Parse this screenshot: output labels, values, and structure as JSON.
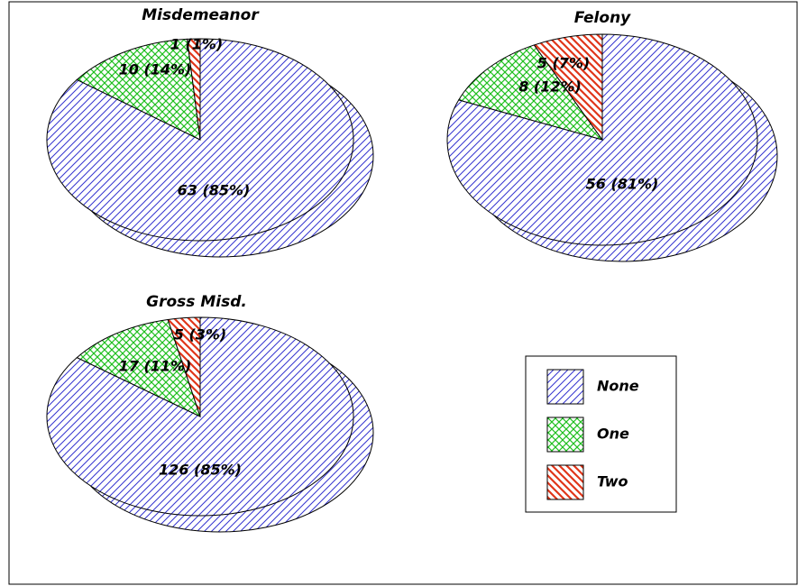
{
  "chart_data": [
    {
      "type": "pie",
      "title": "Misdemeanor",
      "categories": [
        "None",
        "One",
        "Two"
      ],
      "values": [
        63,
        10,
        1
      ],
      "value_labels": [
        "63 (85%)",
        "10 (14%)",
        "1 (1%)"
      ],
      "colors": [
        "#3434d0",
        "#1fbf1f",
        "#e0361a"
      ]
    },
    {
      "type": "pie",
      "title": "Felony",
      "categories": [
        "None",
        "One",
        "Two"
      ],
      "values": [
        56,
        8,
        5
      ],
      "value_labels": [
        "56 (81%)",
        "8 (12%)",
        "5 (7%)"
      ],
      "colors": [
        "#3434d0",
        "#1fbf1f",
        "#e0361a"
      ]
    },
    {
      "type": "pie",
      "title": "Gross Misd.",
      "categories": [
        "None",
        "One",
        "Two"
      ],
      "values": [
        126,
        17,
        5
      ],
      "value_labels": [
        "126 (85%)",
        "17 (11%)",
        "5 (3%)"
      ],
      "colors": [
        "#3434d0",
        "#1fbf1f",
        "#e0361a"
      ]
    }
  ]
}
